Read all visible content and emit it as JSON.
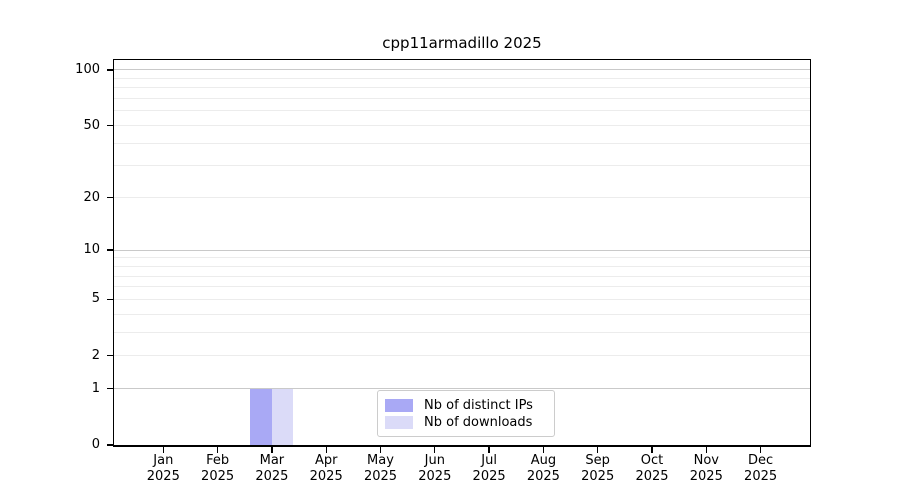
{
  "chart_data": {
    "type": "bar",
    "title": "cpp11armadillo 2025",
    "x_categories": [
      "Jan",
      "Feb",
      "Mar",
      "Apr",
      "May",
      "Jun",
      "Jul",
      "Aug",
      "Sep",
      "Oct",
      "Nov",
      "Dec"
    ],
    "x_year": "2025",
    "series": [
      {
        "name": "Nb of distinct IPs",
        "color": "#a9a9f5",
        "values": [
          0,
          0,
          1,
          0,
          0,
          0,
          0,
          0,
          0,
          0,
          0,
          0
        ]
      },
      {
        "name": "Nb of downloads",
        "color": "#dbdbf8",
        "values": [
          0,
          0,
          1,
          0,
          0,
          0,
          0,
          0,
          0,
          0,
          0,
          0
        ]
      }
    ],
    "y_axis": {
      "scale": "log1p",
      "ticks": [
        0,
        1,
        2,
        5,
        10,
        20,
        50,
        100
      ],
      "major_grid": [
        1,
        10,
        100
      ],
      "lim": [
        0,
        112
      ]
    },
    "legend": {
      "entries": [
        "Nb of distinct IPs",
        "Nb of downloads"
      ],
      "position": "lower center"
    },
    "grid": true
  },
  "colors": {
    "bar_distinct_ips": "#a9a9f5",
    "bar_downloads": "#dbdbf8",
    "major_grid": "#c9c9c9",
    "minor_grid": "#ececec",
    "axis": "#000000",
    "legend_border": "#cccccc",
    "background": "#ffffff"
  }
}
